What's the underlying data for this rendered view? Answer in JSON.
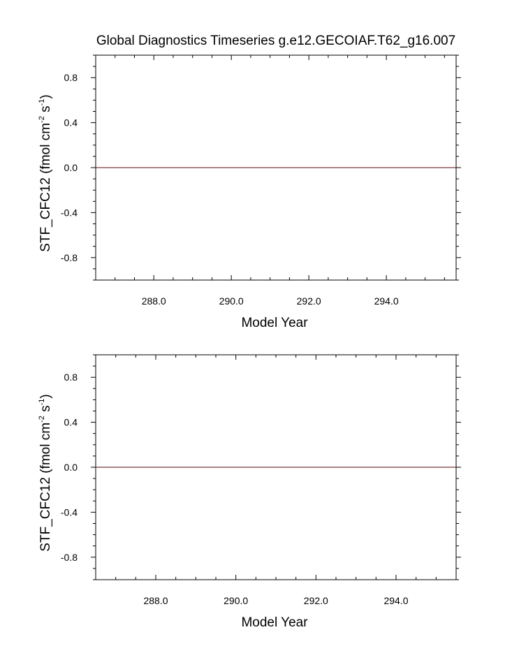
{
  "title": "Global Diagnostics Timeseries g.e12.GECOIAF.T62_g16.007",
  "line_color": "#5a0a0a",
  "chart_data": [
    {
      "type": "line",
      "title": "Global Diagnostics Timeseries g.e12.GECOIAF.T62_g16.007",
      "xlabel": "Model Year",
      "ylabel": {
        "base": "STF_CFC12 (fmol cm",
        "exp1": "-2",
        "mid": " s",
        "exp2": "-1",
        "end": ")"
      },
      "xlim": [
        286.5,
        295.8
      ],
      "ylim": [
        -1.0,
        1.0
      ],
      "x_ticks": [
        288.0,
        290.0,
        292.0,
        294.0
      ],
      "x_tick_labels": [
        "288.0",
        "290.0",
        "292.0",
        "294.0"
      ],
      "y_ticks": [
        0.8,
        0.4,
        0.0,
        -0.4,
        -0.8
      ],
      "y_tick_labels": [
        "0.8",
        "0.4",
        "0.0",
        "-0.4",
        "-0.8"
      ],
      "grid": false,
      "series": [
        {
          "x": [
            286.5,
            295.8
          ],
          "values": [
            0.0,
            0.0
          ]
        }
      ]
    },
    {
      "type": "line",
      "title": "",
      "xlabel": "Model Year",
      "ylabel": {
        "base": "STF_CFC12 (fmol cm",
        "exp1": "-2",
        "mid": " s",
        "exp2": "-1",
        "end": ")"
      },
      "xlim": [
        286.5,
        295.5
      ],
      "ylim": [
        -1.0,
        1.0
      ],
      "x_ticks": [
        288.0,
        290.0,
        292.0,
        294.0
      ],
      "x_tick_labels": [
        "288.0",
        "290.0",
        "292.0",
        "294.0"
      ],
      "y_ticks": [
        0.8,
        0.4,
        0.0,
        -0.4,
        -0.8
      ],
      "y_tick_labels": [
        "0.8",
        "0.4",
        "0.0",
        "-0.4",
        "-0.8"
      ],
      "grid": false,
      "series": [
        {
          "x": [
            286.5,
            295.5
          ],
          "values": [
            0.0,
            0.0
          ]
        }
      ]
    }
  ]
}
